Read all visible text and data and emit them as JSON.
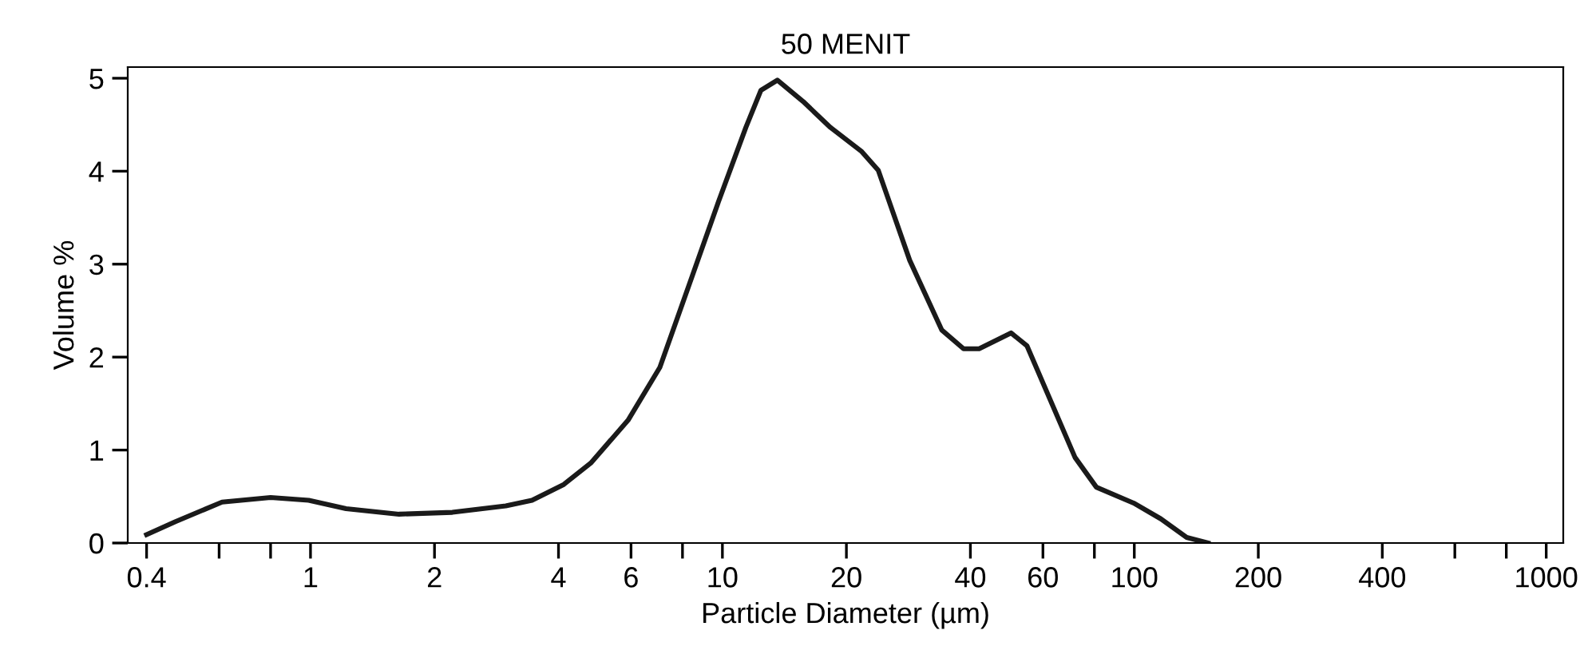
{
  "chart_data": {
    "type": "line",
    "title": "50 MENIT",
    "xlabel": "Particle Diameter (µm)",
    "ylabel": "Volume %",
    "log": "x",
    "x": [
      0.4,
      0.47,
      0.61,
      0.8,
      0.99,
      1.22,
      1.64,
      2.21,
      2.98,
      3.45,
      4.12,
      4.79,
      5.9,
      7.05,
      8.43,
      9.78,
      11.4,
      12.4,
      13.6,
      15.7,
      18.3,
      21.8,
      23.9,
      28.5,
      34.1,
      38.5,
      42.0,
      50.2,
      54.9,
      71.8,
      80.9,
      99.6,
      116,
      134,
      151
    ],
    "series": [
      {
        "color": "#1a1a1a",
        "values": [
          0.09,
          0.23,
          0.44,
          0.49,
          0.46,
          0.37,
          0.31,
          0.33,
          0.4,
          0.46,
          0.63,
          0.86,
          1.32,
          1.89,
          2.86,
          3.67,
          4.47,
          4.87,
          4.98,
          4.75,
          4.47,
          4.21,
          4.01,
          3.04,
          2.29,
          2.09,
          2.09,
          2.26,
          2.12,
          0.92,
          0.6,
          0.43,
          0.26,
          0.06,
          0
        ]
      }
    ],
    "xlim": [
      0.36,
      1100
    ],
    "ylim": [
      0,
      5.12
    ],
    "xticks": [
      0.4,
      {
        "value": 0.6,
        "label": null
      },
      {
        "value": 0.8,
        "label": null
      },
      1,
      2,
      4,
      6,
      {
        "value": 8,
        "label": null
      },
      10,
      20,
      40,
      60,
      {
        "value": 80,
        "label": null
      },
      100,
      200,
      400,
      {
        "value": 600,
        "label": null
      },
      {
        "value": 800,
        "label": null
      },
      1000
    ],
    "yticks": [
      0,
      1,
      2,
      3,
      4,
      5
    ],
    "grid": false,
    "legend": false,
    "marker": "none",
    "line_style": "solid"
  }
}
